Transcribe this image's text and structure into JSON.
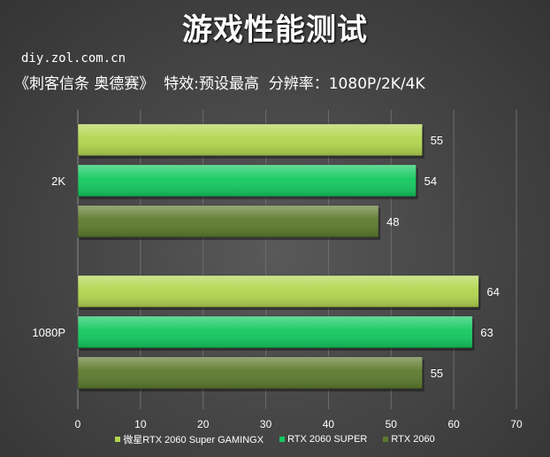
{
  "header": {
    "title": "游戏性能测试",
    "site": "diy.zol.com.cn",
    "subtitle": "《刺客信条 奥德赛》  特效:预设最高  分辨率：1080P/2K/4K"
  },
  "chart_data": {
    "type": "bar",
    "orientation": "horizontal",
    "categories": [
      "2K",
      "1080P"
    ],
    "series": [
      {
        "name": "微星RTX 2060 Super GAMINGX",
        "values": [
          55,
          64
        ],
        "color": "#b2d64e"
      },
      {
        "name": "RTX 2060 SUPER",
        "values": [
          54,
          63
        ],
        "color": "#12c95e"
      },
      {
        "name": "RTX 2060",
        "values": [
          48,
          55
        ],
        "color": "#5c7a2c"
      }
    ],
    "xlim": [
      0,
      70
    ],
    "xticks": [
      0,
      10,
      20,
      30,
      40,
      50,
      60,
      70
    ],
    "grid": true,
    "legend_position": "bottom"
  }
}
